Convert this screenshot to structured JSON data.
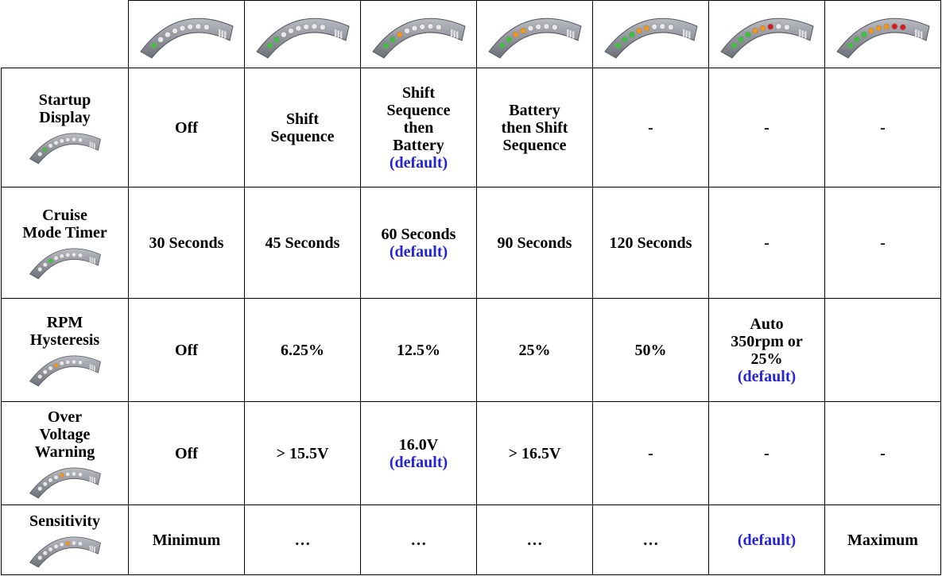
{
  "table": {
    "rows": [
      {
        "label": "Startup Display",
        "cells": [
          {
            "text": "Off"
          },
          {
            "text": "Shift Sequence"
          },
          {
            "text": "Shift Sequence then Battery",
            "note": "(default)"
          },
          {
            "text": "Battery then Shift Sequence"
          },
          {
            "text": "-"
          },
          {
            "text": "-"
          },
          {
            "text": "-"
          }
        ]
      },
      {
        "label": "Cruise Mode Timer",
        "cells": [
          {
            "text": "30 Seconds"
          },
          {
            "text": "45 Seconds"
          },
          {
            "text": "60 Seconds",
            "note": "(default)"
          },
          {
            "text": "90 Seconds"
          },
          {
            "text": "120 Seconds"
          },
          {
            "text": "-"
          },
          {
            "text": "-"
          }
        ]
      },
      {
        "label": "RPM Hysteresis",
        "cells": [
          {
            "text": "Off"
          },
          {
            "text": "6.25%"
          },
          {
            "text": "12.5%"
          },
          {
            "text": "25%"
          },
          {
            "text": "50%"
          },
          {
            "text": "Auto 350rpm or 25%",
            "note": "(default)"
          },
          {}
        ]
      },
      {
        "label": "Over Voltage Warning",
        "cells": [
          {
            "text": "Off"
          },
          {
            "text": "> 15.5V"
          },
          {
            "text": "16.0V",
            "note": "(default)"
          },
          {
            "text": "> 16.5V"
          },
          {
            "text": "-"
          },
          {
            "text": "-"
          },
          {
            "text": "-"
          }
        ]
      },
      {
        "label": "Sensitivity",
        "cells": [
          {
            "text": "Minimum"
          },
          {
            "text": "…"
          },
          {
            "text": "…"
          },
          {
            "text": "…"
          },
          {
            "text": "…"
          },
          {
            "note": "(default)"
          },
          {
            "text": "Maximum"
          }
        ]
      }
    ]
  }
}
